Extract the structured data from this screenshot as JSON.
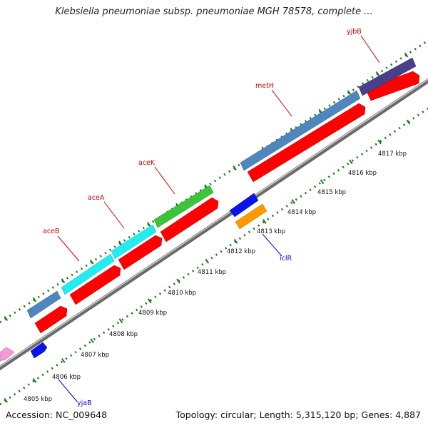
{
  "title": "Klebsiella pneumoniae subsp. pneumoniae MGH 78578, complete ...",
  "footer": {
    "accession": "Accession: NC_009648",
    "stats": "Topology: circular; Length: 5,315,120 bp; Genes: 4,887"
  },
  "colors": {
    "forward_cds": "#ff0000",
    "steel": "#4f86bd",
    "cyan": "#22ecf0",
    "green": "#3cc43c",
    "purple": "#4a3f8a",
    "blue": "#0a14ea",
    "orange": "#ff9900",
    "pink": "#f59ad8",
    "label_plus": "#cc0000",
    "label_minus": "#0000cc",
    "tick": "#1f7a1f",
    "backbone": "#888888"
  },
  "scale_labels": [
    "4805 kbp",
    "4806 kbp",
    "4807 kbp",
    "4808 kbp",
    "4809 kbp",
    "4810 kbp",
    "4811 kbp",
    "4812 kbp",
    "4813 kbp",
    "4814 kbp",
    "4815 kbp",
    "4816 kbp",
    "4817 kbp"
  ],
  "gene_labels": {
    "yjbB": "yjbB",
    "metH": "metH",
    "aceK": "aceK",
    "aceA": "aceA",
    "aceB": "aceB",
    "iclR": "iclR",
    "yjaB": "yjaB"
  }
}
